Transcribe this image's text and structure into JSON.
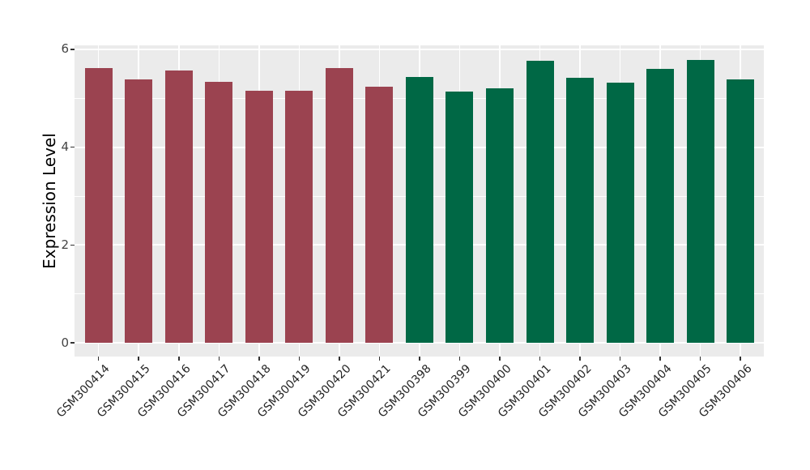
{
  "chart_data": {
    "type": "bar",
    "title": "",
    "xlabel": "",
    "ylabel": "Expression Level",
    "categories": [
      "GSM300414",
      "GSM300415",
      "GSM300416",
      "GSM300417",
      "GSM300418",
      "GSM300419",
      "GSM300420",
      "GSM300421",
      "GSM300398",
      "GSM300399",
      "GSM300400",
      "GSM300401",
      "GSM300402",
      "GSM300403",
      "GSM300404",
      "GSM300405",
      "GSM300406"
    ],
    "values": [
      5.62,
      5.38,
      5.56,
      5.34,
      5.15,
      5.15,
      5.61,
      5.24,
      5.44,
      5.13,
      5.21,
      5.77,
      5.41,
      5.32,
      5.6,
      5.79,
      5.38
    ],
    "groups": [
      "group1",
      "group1",
      "group1",
      "group1",
      "group1",
      "group1",
      "group1",
      "group1",
      "group2",
      "group2",
      "group2",
      "group2",
      "group2",
      "group2",
      "group2",
      "group2",
      "group2"
    ],
    "group_colors": {
      "group1": "#9B4350",
      "group2": "#006845"
    },
    "yticks": [
      0,
      2,
      4,
      6
    ],
    "yticks_minor": [
      1,
      3,
      5
    ],
    "ylim": [
      0,
      6.1
    ],
    "xtick_rotation_deg": 45,
    "legend": "none",
    "grid": "on",
    "panel_background": "#EBEBEB",
    "grid_color": "#FFFFFF",
    "tick_color": "#333333"
  }
}
